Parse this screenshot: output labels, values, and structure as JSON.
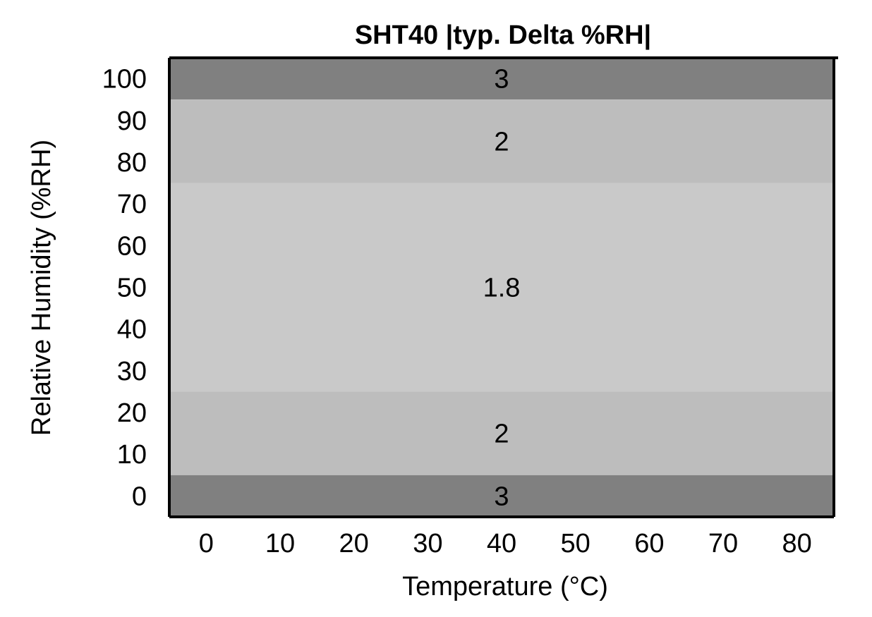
{
  "chart_data": {
    "type": "heatmap",
    "title": "SHT40 |typ. Delta %RH|",
    "xlabel": "Temperature (°C)",
    "ylabel": "Relative Humidity (%RH)",
    "xlim": [
      -5,
      85
    ],
    "ylim": [
      -5,
      105
    ],
    "x_ticks": [
      0,
      10,
      20,
      30,
      40,
      50,
      60,
      70,
      80
    ],
    "y_ticks": [
      0,
      10,
      20,
      30,
      40,
      50,
      60,
      70,
      80,
      90,
      100
    ],
    "grid": false,
    "legend": "none",
    "bands": [
      {
        "rh_from": 95,
        "rh_to": 105,
        "value": "3",
        "color": "#808080"
      },
      {
        "rh_from": 75,
        "rh_to": 95,
        "value": "2",
        "color": "#bdbdbd"
      },
      {
        "rh_from": 25,
        "rh_to": 75,
        "value": "1.8",
        "color": "#c9c9c9"
      },
      {
        "rh_from": 5,
        "rh_to": 25,
        "value": "2",
        "color": "#bdbdbd"
      },
      {
        "rh_from": -5,
        "rh_to": 5,
        "value": "3",
        "color": "#808080"
      }
    ]
  }
}
